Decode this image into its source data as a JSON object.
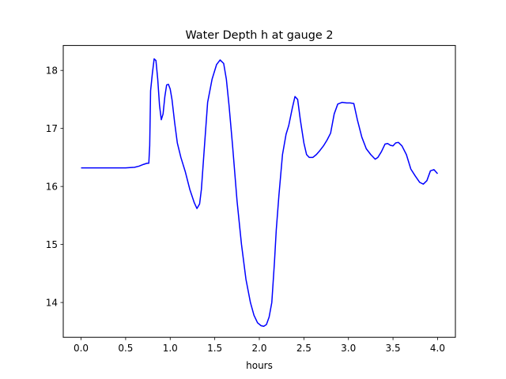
{
  "chart_data": {
    "type": "line",
    "title": "Water Depth h at gauge 2",
    "xlabel": "hours",
    "ylabel": "",
    "xlim": [
      -0.2,
      4.2
    ],
    "ylim": [
      13.4,
      18.43
    ],
    "xticks": [
      0.0,
      0.5,
      1.0,
      1.5,
      2.0,
      2.5,
      3.0,
      3.5,
      4.0
    ],
    "xtick_labels": [
      "0.0",
      "0.5",
      "1.0",
      "1.5",
      "2.0",
      "2.5",
      "3.0",
      "3.5",
      "4.0"
    ],
    "yticks": [
      14,
      15,
      16,
      17,
      18
    ],
    "ytick_labels": [
      "14",
      "15",
      "16",
      "17",
      "18"
    ],
    "grid": false,
    "series": [
      {
        "name": "",
        "color": "#0000ff",
        "x": [
          0.0,
          0.2,
          0.4,
          0.5,
          0.6,
          0.65,
          0.7,
          0.74,
          0.76,
          0.77,
          0.78,
          0.8,
          0.82,
          0.84,
          0.86,
          0.88,
          0.9,
          0.92,
          0.94,
          0.96,
          0.98,
          1.0,
          1.02,
          1.05,
          1.08,
          1.12,
          1.17,
          1.22,
          1.27,
          1.3,
          1.33,
          1.35,
          1.38,
          1.42,
          1.47,
          1.52,
          1.56,
          1.6,
          1.63,
          1.66,
          1.7,
          1.75,
          1.8,
          1.85,
          1.9,
          1.94,
          1.98,
          2.02,
          2.05,
          2.08,
          2.11,
          2.14,
          2.17,
          2.19,
          2.22,
          2.26,
          2.3,
          2.33,
          2.37,
          2.4,
          2.43,
          2.46,
          2.5,
          2.53,
          2.56,
          2.6,
          2.64,
          2.68,
          2.72,
          2.76,
          2.8,
          2.84,
          2.88,
          2.93,
          2.98,
          3.02,
          3.06,
          3.1,
          3.15,
          3.2,
          3.25,
          3.3,
          3.33,
          3.37,
          3.41,
          3.44,
          3.47,
          3.5,
          3.53,
          3.56,
          3.6,
          3.65,
          3.7,
          3.75,
          3.8,
          3.84,
          3.88,
          3.92,
          3.96,
          4.0
        ],
        "y": [
          16.32,
          16.32,
          16.32,
          16.32,
          16.33,
          16.35,
          16.38,
          16.4,
          16.4,
          16.7,
          17.65,
          17.95,
          18.2,
          18.17,
          17.85,
          17.4,
          17.15,
          17.25,
          17.55,
          17.75,
          17.76,
          17.68,
          17.5,
          17.1,
          16.75,
          16.5,
          16.25,
          15.95,
          15.72,
          15.62,
          15.7,
          15.95,
          16.6,
          17.45,
          17.85,
          18.1,
          18.18,
          18.12,
          17.85,
          17.4,
          16.7,
          15.75,
          15.0,
          14.4,
          14.0,
          13.78,
          13.65,
          13.6,
          13.59,
          13.62,
          13.75,
          14.0,
          14.7,
          15.25,
          15.85,
          16.55,
          16.9,
          17.05,
          17.35,
          17.55,
          17.5,
          17.15,
          16.75,
          16.55,
          16.5,
          16.5,
          16.55,
          16.62,
          16.7,
          16.8,
          16.92,
          17.25,
          17.42,
          17.45,
          17.44,
          17.44,
          17.43,
          17.15,
          16.85,
          16.65,
          16.55,
          16.47,
          16.5,
          16.6,
          16.73,
          16.74,
          16.71,
          16.7,
          16.75,
          16.76,
          16.7,
          16.55,
          16.3,
          16.18,
          16.07,
          16.04,
          16.1,
          16.27,
          16.29,
          16.22
        ]
      }
    ]
  }
}
